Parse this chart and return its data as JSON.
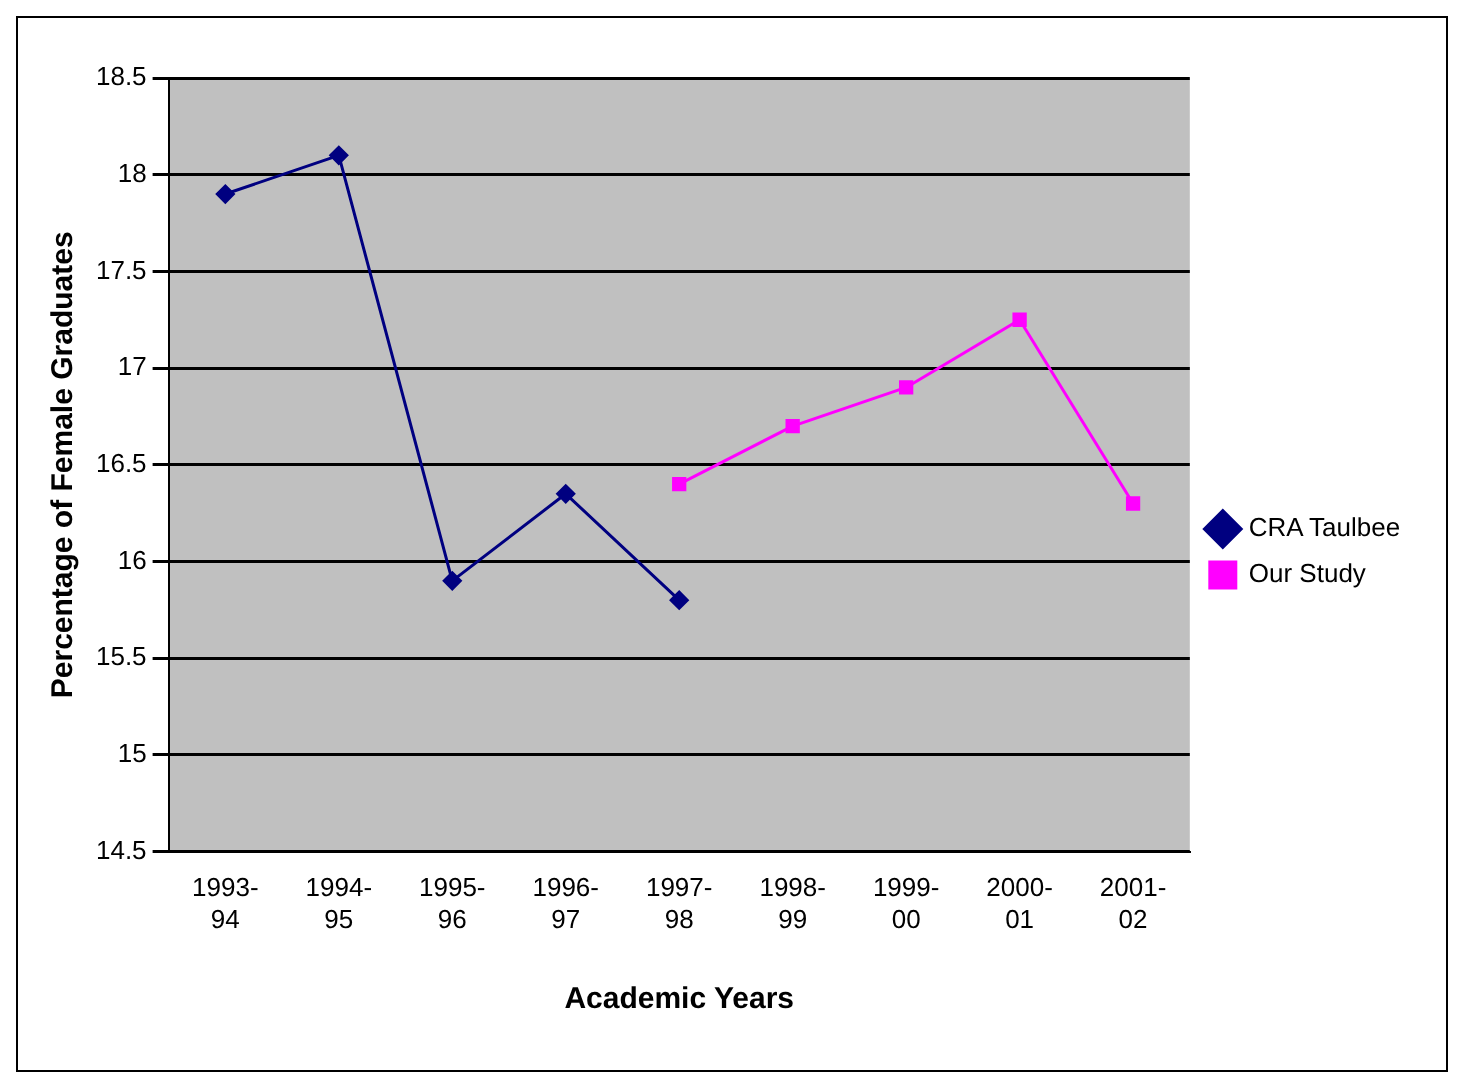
{
  "chart_data": {
    "type": "line",
    "xlabel": "Academic Years",
    "ylabel": "Percentage of Female Graduates",
    "categories": [
      "1993-94",
      "1994-95",
      "1995-96",
      "1996-97",
      "1997-98",
      "1998-99",
      "1999-00",
      "2000-01",
      "2001-02"
    ],
    "series": [
      {
        "name": "CRA Taulbee",
        "color": "#000080",
        "marker": "diamond",
        "values": [
          17.9,
          18.1,
          15.9,
          16.35,
          15.8,
          null,
          null,
          null,
          null
        ]
      },
      {
        "name": "Our Study",
        "color": "#ff00ff",
        "marker": "square",
        "values": [
          null,
          null,
          null,
          null,
          16.4,
          16.7,
          16.9,
          17.25,
          16.3
        ]
      }
    ],
    "ylim": [
      14.5,
      18.5
    ],
    "yticks": [
      14.5,
      15,
      15.5,
      16,
      16.5,
      17,
      17.5,
      18,
      18.5
    ],
    "grid": "y",
    "legend": "right"
  }
}
